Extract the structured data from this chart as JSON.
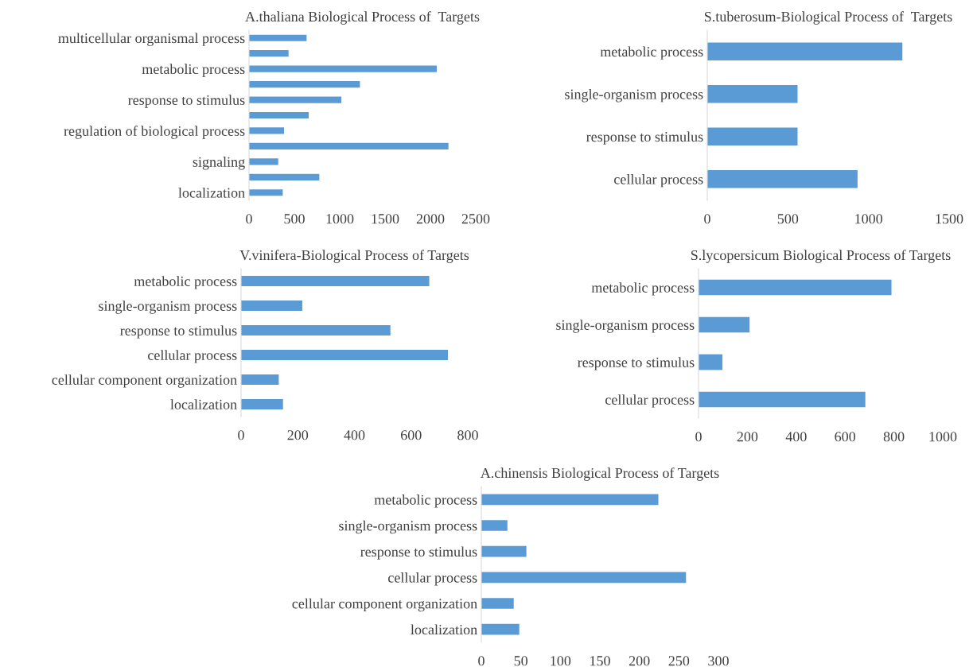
{
  "chart_data": [
    {
      "type": "bar",
      "orientation": "horizontal",
      "title": "A.thaliana Biological Process of  Targets",
      "categories": [
        "multicellular organismal process",
        null,
        "metabolic process",
        null,
        "response to stimulus",
        null,
        "regulation of biological process",
        null,
        "signaling",
        null,
        "localization"
      ],
      "values": [
        635,
        436,
        2070,
        1223,
        1018,
        658,
        386,
        2199,
        322,
        775,
        372
      ],
      "color": "#5b9bd5",
      "xlim": [
        0,
        2500
      ],
      "xticks": [
        0,
        500,
        1000,
        1500,
        2000,
        2500
      ],
      "grid": false,
      "legend": false
    },
    {
      "type": "bar",
      "orientation": "horizontal",
      "title": "S.tuberosum-Biological Process of  Targets",
      "categories": [
        "metabolic process",
        "single-organism process",
        "response to stimulus",
        "cellular process"
      ],
      "values": [
        1210,
        560,
        560,
        932
      ],
      "color": "#5b9bd5",
      "xlim": [
        0,
        1500
      ],
      "xticks": [
        0,
        500,
        1000,
        1500
      ],
      "grid": false,
      "legend": false
    },
    {
      "type": "bar",
      "orientation": "horizontal",
      "title": "V.vinifera-Biological Process of Targets",
      "categories": [
        "metabolic process",
        "single-organism process",
        "response to stimulus",
        "cellular process",
        "cellular component organization",
        "localization"
      ],
      "values": [
        664,
        216,
        527,
        730,
        133,
        148
      ],
      "color": "#5b9bd5",
      "xlim": [
        0,
        800
      ],
      "xticks": [
        0,
        200,
        400,
        600,
        800
      ],
      "grid": false,
      "legend": false
    },
    {
      "type": "bar",
      "orientation": "horizontal",
      "title": "S.lycopersicum Biological Process of Targets",
      "categories": [
        "metabolic process",
        "single-organism process",
        "response to stimulus",
        "cellular process"
      ],
      "values": [
        790,
        209,
        98,
        683
      ],
      "color": "#5b9bd5",
      "xlim": [
        0,
        1000
      ],
      "xticks": [
        0,
        200,
        400,
        600,
        800,
        1000
      ],
      "grid": false,
      "legend": false
    },
    {
      "type": "bar",
      "orientation": "horizontal",
      "title": "A.chinensis Biological Process of Targets",
      "categories": [
        "metabolic process",
        "single-organism process",
        "response to stimulus",
        "cellular process",
        "cellular component organization",
        "localization"
      ],
      "values": [
        224,
        33,
        57,
        259,
        41,
        48
      ],
      "color": "#5b9bd5",
      "xlim": [
        0,
        300
      ],
      "xticks": [
        0,
        50,
        100,
        150,
        200,
        250,
        300
      ],
      "grid": false,
      "legend": false
    }
  ]
}
